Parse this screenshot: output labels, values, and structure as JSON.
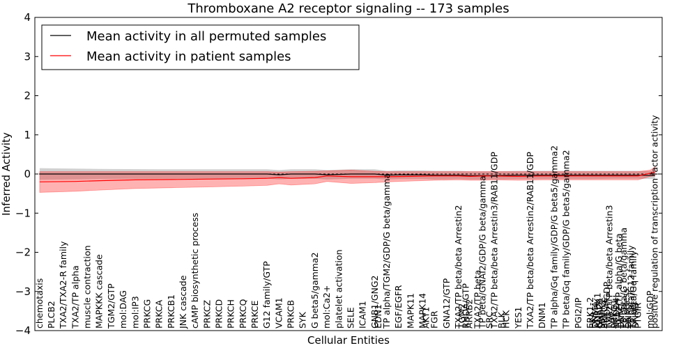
{
  "chart_data": {
    "type": "line",
    "title": "Thromboxane A2 receptor signaling -- 173 samples",
    "xlabel": "Cellular Entities",
    "ylabel": "Inferred Activity",
    "ylim": [
      -4,
      4
    ],
    "yticks": [
      "4",
      "3",
      "2",
      "1",
      "0",
      "−1",
      "−2",
      "−3",
      "−4"
    ],
    "grid": false,
    "legend_position": "top-left",
    "legend": [
      "Mean activity in all permuted samples",
      "Mean activity in patient samples"
    ],
    "entity_labels": [
      "chemotaxis",
      "PLCB2",
      "TXA2/TXA2-R family",
      "TXA2/TP alpha",
      "muscle contraction",
      "MAPKKK cascade",
      "TGM2/GTP",
      "mol:DAG",
      "mol:IP3",
      "PRKCG",
      "PRKCA",
      "PRKCB1",
      "JNK cascade",
      "cAMP biosynthetic process",
      "PRKCZ",
      "PRKCD",
      "PRKCH",
      "PRKCQ",
      "PRKCE",
      "G12 family/GTP",
      "VCAM1",
      "PRKCB",
      "SYK",
      "G beta5/gamma2",
      "mol:Ca2+",
      "platelet activation",
      "SELE",
      "ICAM1",
      "GNB1/GNG2",
      "EDN1",
      "TP alpha/TGM2/GDP/G beta/gamma",
      "EGF/EGFR",
      "MAPK11",
      "MAPK14",
      "AKT1",
      "FGR",
      "GNA12/GTP",
      "TXA2/TP beta/beta Arrestin2",
      "TGM2",
      "RHOA/GTP",
      "ARRB2",
      "TXA2/TP beta",
      "TP beta/GNAI2/GDP/G beta/gamma",
      "SRC",
      "TXA2/TP beta/beta Arrestin3/RAB11/GDP",
      "BLK",
      "HCK",
      "YES1",
      "TXA2/TP beta/beta Arrestin2/RAB11/GDP",
      "DNM1",
      "TP alpha/Gq family/GDP/G beta5/gamma2",
      "TP beta/Gq family/GDP/G beta5/gamma2",
      "PGI2/IP",
      "ERK1-2",
      "PKA",
      "DNM4",
      "ADRBK1",
      "GNAO1",
      "MAPK1",
      "PRKCA",
      "RHOA/GDP",
      "TXA2/TP beta/beta Arrestin3",
      "LYN",
      "PRKG1",
      "NEDD4L",
      "TXA2/TP alpha/G beta",
      "DNM1",
      "TP beta/G beta/gamma",
      "ER stress",
      "DNM2",
      "TP beta/G12 family",
      "TP beta/Gq family",
      "DNM3",
      "PTGIR",
      "mol:GDP",
      "positive regulation of transcription factor activity"
    ],
    "entity_positions": [
      0,
      1,
      2,
      3,
      4,
      5,
      6,
      7,
      8,
      9,
      10,
      11,
      12,
      13,
      14,
      15,
      16,
      17,
      18,
      19,
      20,
      21,
      22,
      23,
      24,
      25,
      26,
      27,
      28,
      28.3,
      29,
      30,
      31,
      32,
      32.3,
      33,
      34,
      35,
      35.3,
      35.6,
      35.9,
      36.6,
      37,
      37.6,
      38,
      38.6,
      39,
      40,
      41,
      42,
      43,
      44,
      45,
      46,
      46.2,
      46.4,
      46.6,
      46.8,
      47,
      47.2,
      47.4,
      47.6,
      47.8,
      48,
      48.2,
      48.4,
      48.6,
      48.8,
      49,
      49.2,
      49.4,
      49.6,
      49.8,
      50,
      51,
      51.4
    ],
    "x_range": [
      -0.4,
      52.0
    ],
    "series": [
      {
        "name": "Mean activity in all permuted samples",
        "color": "#000000",
        "x": [
          0,
          5,
          10,
          15,
          19,
          20,
          21,
          22,
          23,
          24,
          26,
          28,
          29,
          30,
          32,
          33,
          35,
          36,
          38,
          40,
          42,
          44,
          46,
          48,
          50,
          51.4
        ],
        "mean": [
          0.0,
          0.0,
          0.0,
          0.0,
          0.0,
          -0.02,
          0.0,
          0.0,
          0.0,
          -0.02,
          0.0,
          0.0,
          -0.03,
          -0.02,
          -0.02,
          -0.03,
          -0.03,
          -0.04,
          -0.04,
          -0.03,
          -0.03,
          -0.03,
          -0.03,
          -0.03,
          -0.03,
          -0.04
        ],
        "band_low": [
          -0.15,
          -0.13,
          -0.12,
          -0.12,
          -0.12,
          -0.14,
          -0.12,
          -0.12,
          -0.12,
          -0.14,
          -0.12,
          -0.12,
          -0.14,
          -0.13,
          -0.13,
          -0.14,
          -0.13,
          -0.14,
          -0.14,
          -0.13,
          -0.13,
          -0.13,
          -0.13,
          -0.12,
          -0.12,
          -0.13
        ],
        "band_high": [
          0.15,
          0.13,
          0.12,
          0.12,
          0.12,
          0.1,
          0.12,
          0.12,
          0.12,
          0.1,
          0.12,
          0.12,
          0.08,
          0.09,
          0.09,
          0.08,
          0.08,
          0.07,
          0.07,
          0.08,
          0.08,
          0.08,
          0.08,
          0.08,
          0.08,
          0.07
        ]
      },
      {
        "name": "Mean activity in patient samples",
        "color": "#ff0000",
        "x": [
          0,
          3,
          5,
          8,
          11,
          14,
          17,
          19,
          20,
          21,
          23,
          24,
          26,
          28,
          29,
          31,
          33,
          35,
          36,
          37,
          38,
          40,
          42,
          44,
          46,
          48,
          50,
          51,
          51.4
        ],
        "mean": [
          -0.2,
          -0.19,
          -0.17,
          -0.15,
          -0.14,
          -0.13,
          -0.12,
          -0.11,
          -0.09,
          -0.11,
          -0.09,
          -0.05,
          -0.07,
          -0.07,
          -0.07,
          -0.06,
          -0.05,
          -0.05,
          -0.06,
          -0.05,
          -0.05,
          -0.06,
          -0.05,
          -0.05,
          -0.05,
          -0.05,
          -0.05,
          0.02,
          0.05
        ],
        "band_low": [
          -0.47,
          -0.44,
          -0.41,
          -0.37,
          -0.35,
          -0.33,
          -0.31,
          -0.29,
          -0.25,
          -0.28,
          -0.25,
          -0.19,
          -0.24,
          -0.22,
          -0.2,
          -0.18,
          -0.16,
          -0.15,
          -0.16,
          -0.16,
          -0.15,
          -0.16,
          -0.15,
          -0.15,
          -0.15,
          -0.15,
          -0.15,
          -0.06,
          -0.05
        ],
        "band_high": [
          0.06,
          0.06,
          0.06,
          0.06,
          0.06,
          0.06,
          0.06,
          0.06,
          0.05,
          0.06,
          0.07,
          0.08,
          0.1,
          0.07,
          0.06,
          0.06,
          0.06,
          0.06,
          0.06,
          0.06,
          0.06,
          0.06,
          0.06,
          0.06,
          0.06,
          0.06,
          0.06,
          0.1,
          0.18
        ]
      }
    ],
    "band_colors": {
      "permuted": "#000000",
      "patient": "#ff0000"
    }
  }
}
